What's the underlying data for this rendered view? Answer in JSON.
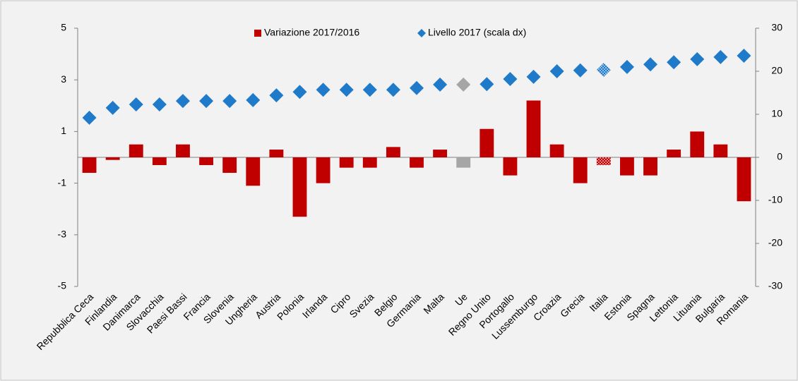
{
  "chart_data": {
    "type": "bar_scatter",
    "categories": [
      "Repubblica Ceca",
      "Finlandia",
      "Danimarca",
      "Slovacchia",
      "Paesi Bassi",
      "Francia",
      "Slovenia",
      "Ungheria",
      "Austria",
      "Polonia",
      "Irlanda",
      "Cipro",
      "Svezia",
      "Belgio",
      "Germania",
      "Malta",
      "Ue",
      "Regno Unito",
      "Portogallo",
      "Lussemburgo",
      "Croazia",
      "Grecia",
      "Italia",
      "Estonia",
      "Spagna",
      "Lettonia",
      "Lituania",
      "Bulgaria",
      "Romania"
    ],
    "series": [
      {
        "name": "Variazione 2017/2016",
        "type": "bar",
        "color": "#c00000",
        "colors": [
          "#c00000",
          "#c00000",
          "#c00000",
          "#c00000",
          "#c00000",
          "#c00000",
          "#c00000",
          "#c00000",
          "#c00000",
          "#c00000",
          "#c00000",
          "#c00000",
          "#c00000",
          "#c00000",
          "#c00000",
          "#c00000",
          "#a6a6a6",
          "#c00000",
          "#c00000",
          "#c00000",
          "#c00000",
          "#c00000",
          "#e06666",
          "#c00000",
          "#c00000",
          "#c00000",
          "#c00000",
          "#c00000",
          "#c00000"
        ],
        "values": [
          -0.6,
          -0.1,
          0.5,
          -0.3,
          0.5,
          -0.3,
          -0.6,
          -1.1,
          0.3,
          -2.3,
          -1.0,
          -0.4,
          -0.4,
          0.4,
          -0.4,
          0.3,
          -0.4,
          1.1,
          -0.7,
          2.2,
          0.5,
          -1.0,
          -0.3,
          -0.7,
          -0.7,
          0.3,
          1.0,
          0.5,
          -1.7
        ]
      },
      {
        "name": "Livello 2017 (scala dx)",
        "type": "scatter",
        "axis": "y2",
        "color": "#1f7bc9",
        "colors": [
          "#1f7bc9",
          "#1f7bc9",
          "#1f7bc9",
          "#1f7bc9",
          "#1f7bc9",
          "#1f7bc9",
          "#1f7bc9",
          "#1f7bc9",
          "#1f7bc9",
          "#1f7bc9",
          "#1f7bc9",
          "#1f7bc9",
          "#1f7bc9",
          "#1f7bc9",
          "#1f7bc9",
          "#1f7bc9",
          "#a6a6a6",
          "#1f7bc9",
          "#1f7bc9",
          "#1f7bc9",
          "#1f7bc9",
          "#1f7bc9",
          "#6fa8dc",
          "#1f7bc9",
          "#1f7bc9",
          "#1f7bc9",
          "#1f7bc9",
          "#1f7bc9",
          "#1f7bc9"
        ],
        "values": [
          9.2,
          11.5,
          12.3,
          12.3,
          13.1,
          13.1,
          13.1,
          13.3,
          14.4,
          15.2,
          15.7,
          15.7,
          15.7,
          15.7,
          16.1,
          16.9,
          16.9,
          17.0,
          18.2,
          18.7,
          20.0,
          20.2,
          20.3,
          21.0,
          21.6,
          22.1,
          22.8,
          23.3,
          23.6
        ]
      }
    ],
    "ylim": [
      -5,
      5
    ],
    "yticks": [
      -5,
      -3,
      -1,
      1,
      3,
      5
    ],
    "y2lim": [
      -30,
      30
    ],
    "y2ticks": [
      -30,
      -20,
      -10,
      0,
      10,
      20,
      30
    ],
    "legend": "top"
  }
}
